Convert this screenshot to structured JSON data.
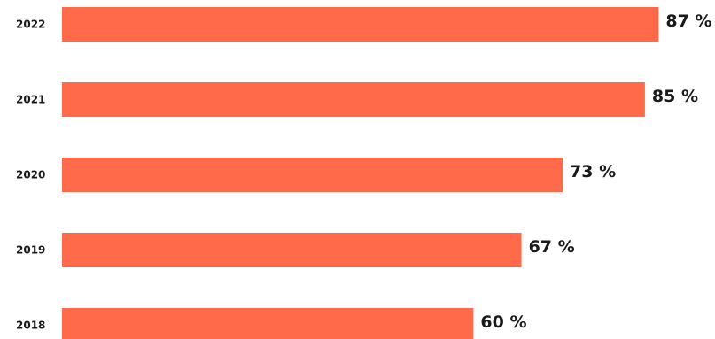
{
  "chart_data": {
    "type": "bar",
    "orientation": "horizontal",
    "categories": [
      "2022",
      "2021",
      "2020",
      "2019",
      "2018"
    ],
    "values": [
      87,
      85,
      73,
      67,
      60
    ],
    "value_labels": [
      "87 %",
      "85 %",
      "73 %",
      "67 %",
      "60 %"
    ],
    "title": "",
    "xlabel": "",
    "ylabel": "",
    "xlim": [
      0,
      100
    ],
    "grid": false,
    "bar_color": "#ff6b4a"
  }
}
